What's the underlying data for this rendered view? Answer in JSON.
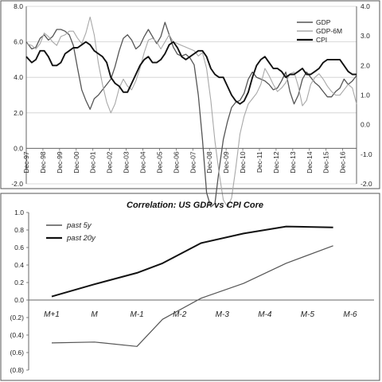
{
  "chart_data": [
    {
      "type": "line",
      "title": "",
      "xlabel": "",
      "ylabel": "",
      "x_ticks": [
        "Dec-97",
        "Dec-98",
        "Dec-99",
        "Dec-00",
        "Dec-01",
        "Dec-02",
        "Dec-03",
        "Dec-04",
        "Dec-05",
        "Dec-06",
        "Dec-07",
        "Dec-08",
        "Dec-09",
        "Dec-10",
        "Dec-11",
        "Dec-12",
        "Dec-13",
        "Dec-14",
        "Dec-15",
        "Dec-16"
      ],
      "x_range": [
        1997.92,
        2017.75
      ],
      "y_left": {
        "ylim": [
          -2.0,
          8.0
        ],
        "ticks": [
          "-2.0",
          "0.0",
          "2.0",
          "4.0",
          "6.0",
          "8.0"
        ],
        "tick_values": [
          -2,
          0,
          2,
          4,
          6,
          8
        ]
      },
      "y_right": {
        "ylim": [
          -2.0,
          4.0
        ],
        "ticks": [
          "-2.0",
          "-1.0",
          "0.0",
          "1.0",
          "2.0",
          "3.0",
          "4.0"
        ],
        "tick_values": [
          -2,
          -1,
          0,
          1,
          2,
          3,
          4
        ]
      },
      "grid": true,
      "legend_position": "top-right",
      "series": [
        {
          "name": "GDP",
          "axis": "left",
          "color": "#555555",
          "x": [
            1997.92,
            1998.25,
            1998.5,
            1998.75,
            1999.0,
            1999.25,
            1999.5,
            1999.75,
            2000.0,
            2000.25,
            2000.5,
            2000.75,
            2001.0,
            2001.25,
            2001.5,
            2001.75,
            2002.0,
            2002.25,
            2002.5,
            2002.75,
            2003.0,
            2003.25,
            2003.5,
            2003.75,
            2004.0,
            2004.25,
            2004.5,
            2004.75,
            2005.0,
            2005.25,
            2005.5,
            2005.75,
            2006.0,
            2006.25,
            2006.5,
            2006.75,
            2007.0,
            2007.25,
            2007.5,
            2007.75,
            2008.0,
            2008.25,
            2008.5,
            2008.75,
            2009.0,
            2009.25,
            2009.5,
            2009.75,
            2010.0,
            2010.25,
            2010.5,
            2010.75,
            2011.0,
            2011.25,
            2011.5,
            2011.75,
            2012.0,
            2012.25,
            2012.5,
            2012.75,
            2013.0,
            2013.25,
            2013.5,
            2013.75,
            2014.0,
            2014.25,
            2014.5,
            2014.75,
            2015.0,
            2015.25,
            2015.5,
            2015.75,
            2016.0,
            2016.25,
            2016.5,
            2016.75,
            2017.0,
            2017.25,
            2017.5,
            2017.75
          ],
          "values": [
            6.0,
            5.6,
            5.7,
            6.2,
            6.4,
            6.1,
            6.3,
            6.7,
            6.7,
            6.6,
            6.4,
            5.8,
            4.5,
            3.3,
            2.7,
            2.2,
            2.8,
            3.0,
            3.3,
            3.6,
            3.9,
            4.6,
            5.5,
            6.2,
            6.4,
            6.1,
            5.6,
            5.8,
            6.3,
            6.7,
            6.3,
            5.9,
            6.3,
            7.1,
            6.4,
            5.7,
            5.3,
            5.2,
            5.3,
            5.1,
            4.7,
            3.0,
            0.5,
            -2.5,
            -3.3,
            -3.1,
            -1.2,
            0.5,
            1.5,
            2.3,
            2.6,
            2.7,
            3.1,
            3.9,
            4.3,
            4.0,
            3.9,
            3.8,
            3.6,
            3.3,
            3.4,
            3.8,
            4.3,
            3.2,
            2.5,
            3.0,
            3.9,
            4.3,
            4.0,
            3.7,
            3.5,
            3.2,
            2.9,
            2.9,
            3.2,
            3.4,
            3.9,
            3.6,
            3.8,
            4.1
          ]
        },
        {
          "name": "GDP-6M",
          "axis": "left",
          "color": "#a8a8a8",
          "x": [
            1997.92,
            1998.25,
            1998.5,
            1998.75,
            1999.0,
            1999.25,
            1999.5,
            1999.75,
            2000.0,
            2000.25,
            2000.5,
            2000.75,
            2001.0,
            2001.25,
            2001.5,
            2001.75,
            2002.0,
            2002.25,
            2002.5,
            2002.75,
            2003.0,
            2003.25,
            2003.5,
            2003.75,
            2004.0,
            2004.25,
            2004.5,
            2004.75,
            2005.0,
            2005.25,
            2005.5,
            2005.75,
            2006.0,
            2006.25,
            2006.5,
            2006.75,
            2007.0,
            2007.25,
            2007.5,
            2007.75,
            2008.0,
            2008.25,
            2008.5,
            2008.75,
            2009.0,
            2009.25,
            2009.5,
            2009.75,
            2010.0,
            2010.25,
            2010.5,
            2010.75,
            2011.0,
            2011.25,
            2011.5,
            2011.75,
            2012.0,
            2012.25,
            2012.5,
            2012.75,
            2013.0,
            2013.25,
            2013.5,
            2013.75,
            2014.0,
            2014.25,
            2014.5,
            2014.75,
            2015.0,
            2015.25,
            2015.5,
            2015.75,
            2016.0,
            2016.25,
            2016.5,
            2016.75,
            2017.0,
            2017.25,
            2017.5,
            2017.75
          ],
          "values": [
            5.9,
            5.8,
            5.6,
            5.9,
            6.5,
            6.3,
            6.0,
            5.8,
            6.3,
            6.4,
            6.6,
            6.6,
            6.2,
            5.9,
            6.5,
            7.4,
            6.4,
            4.8,
            3.6,
            2.6,
            2.0,
            2.5,
            3.4,
            3.9,
            3.5,
            3.3,
            3.8,
            4.5,
            5.4,
            6.1,
            6.2,
            6.0,
            5.6,
            6.0,
            6.4,
            6.0,
            5.9,
            5.8,
            5.7,
            5.6,
            5.5,
            5.2,
            5.4,
            4.5,
            2.7,
            0.4,
            -1.4,
            -2.9,
            -3.3,
            -2.8,
            -1.1,
            0.8,
            1.8,
            2.5,
            2.8,
            3.1,
            3.6,
            4.5,
            4.1,
            3.6,
            3.2,
            3.4,
            3.7,
            4.2,
            4.3,
            3.5,
            2.4,
            2.7,
            3.6,
            4.0,
            4.2,
            3.9,
            3.5,
            3.2,
            3.0,
            3.0,
            3.3,
            3.6,
            3.4,
            2.5
          ]
        },
        {
          "name": "CPI",
          "axis": "right",
          "color": "#111111",
          "x": [
            1997.92,
            1998.25,
            1998.5,
            1998.75,
            1999.0,
            1999.25,
            1999.5,
            1999.75,
            2000.0,
            2000.25,
            2000.5,
            2000.75,
            2001.0,
            2001.25,
            2001.5,
            2001.75,
            2002.0,
            2002.25,
            2002.5,
            2002.75,
            2003.0,
            2003.25,
            2003.5,
            2003.75,
            2004.0,
            2004.25,
            2004.5,
            2004.75,
            2005.0,
            2005.25,
            2005.5,
            2005.75,
            2006.0,
            2006.25,
            2006.5,
            2006.75,
            2007.0,
            2007.25,
            2007.5,
            2007.75,
            2008.0,
            2008.25,
            2008.5,
            2008.75,
            2009.0,
            2009.25,
            2009.5,
            2009.75,
            2010.0,
            2010.25,
            2010.5,
            2010.75,
            2011.0,
            2011.25,
            2011.5,
            2011.75,
            2012.0,
            2012.25,
            2012.5,
            2012.75,
            2013.0,
            2013.25,
            2013.5,
            2013.75,
            2014.0,
            2014.25,
            2014.5,
            2014.75,
            2015.0,
            2015.25,
            2015.5,
            2015.75,
            2016.0,
            2016.25,
            2016.5,
            2016.75,
            2017.0,
            2017.25,
            2017.5,
            2017.75
          ],
          "values": [
            2.3,
            2.1,
            2.2,
            2.5,
            2.5,
            2.3,
            2.0,
            2.0,
            2.1,
            2.4,
            2.5,
            2.6,
            2.6,
            2.7,
            2.8,
            2.7,
            2.5,
            2.4,
            2.3,
            2.1,
            1.6,
            1.4,
            1.3,
            1.1,
            1.1,
            1.4,
            1.7,
            2.0,
            2.2,
            2.3,
            2.1,
            2.1,
            2.2,
            2.4,
            2.7,
            2.8,
            2.6,
            2.3,
            2.2,
            2.3,
            2.4,
            2.5,
            2.5,
            2.3,
            1.9,
            1.7,
            1.6,
            1.6,
            1.3,
            1.0,
            0.8,
            0.7,
            0.8,
            1.1,
            1.6,
            2.0,
            2.2,
            2.3,
            2.1,
            1.9,
            1.9,
            1.8,
            1.6,
            1.7,
            1.7,
            1.8,
            1.9,
            1.7,
            1.7,
            1.8,
            1.9,
            2.1,
            2.2,
            2.2,
            2.2,
            2.2,
            2.0,
            1.8,
            1.7,
            1.7
          ]
        }
      ]
    },
    {
      "type": "line",
      "title": "Correlation: US GDP vs CPI Core",
      "xlabel": "",
      "ylabel": "",
      "categories": [
        "M+1",
        "M",
        "M-1",
        "M-2",
        "M-3",
        "M-4",
        "M-5",
        "M-6"
      ],
      "ylim": [
        -0.8,
        1.0
      ],
      "y_ticks": [
        "1.0",
        "0.8",
        "0.6",
        "0.4",
        "0.2",
        "0.0",
        "(0.2)",
        "(0.4)",
        "(0.6)",
        "(0.8)"
      ],
      "y_tick_values": [
        1.0,
        0.8,
        0.6,
        0.4,
        0.2,
        0.0,
        -0.2,
        -0.4,
        -0.6,
        -0.8
      ],
      "grid": false,
      "legend_position": "top-left",
      "series": [
        {
          "name": "past 5y",
          "color": "#555555",
          "x": [
            0.0,
            1.0,
            2.0,
            2.6,
            3.5,
            4.5,
            5.5,
            6.6
          ],
          "values": [
            -0.49,
            -0.48,
            -0.53,
            -0.22,
            0.02,
            0.19,
            0.42,
            0.62
          ]
        },
        {
          "name": "past 20y",
          "color": "#111111",
          "x": [
            0.0,
            1.0,
            2.0,
            2.6,
            3.5,
            4.5,
            5.5,
            6.6
          ],
          "values": [
            0.04,
            0.18,
            0.31,
            0.42,
            0.65,
            0.76,
            0.84,
            0.83
          ]
        }
      ]
    }
  ]
}
